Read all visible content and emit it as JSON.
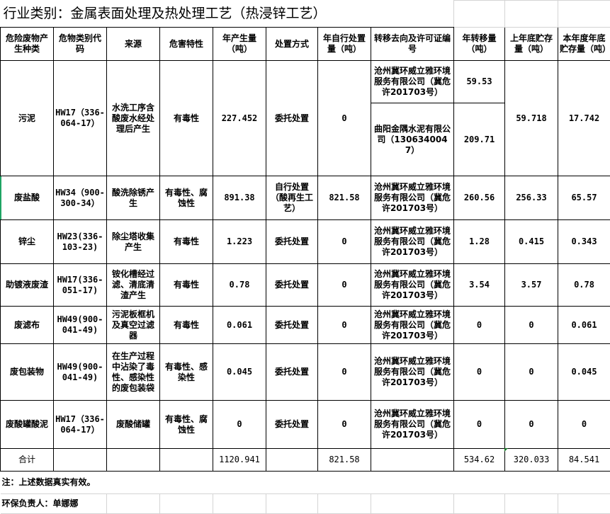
{
  "title": "行业类别：金属表面处理及热处理工艺（热浸锌工艺）",
  "headers": [
    "危险废物产生种类",
    "危物类别代码",
    "来源",
    "危害特性",
    "年产生量（吨）",
    "处置方式",
    "年自行处置量（吨）",
    "转移去向及许可证编号",
    "年转移量（吨）",
    "上年底贮存量（吨）",
    "本年度年底贮存量（吨）"
  ],
  "sludge": {
    "name": "污泥",
    "code": "HW17（336-064-17）",
    "source": "水洗工序含酸废水经处理后产生",
    "hazard": "有毒性",
    "generated": "227.452",
    "method": "委托处置",
    "self": "0",
    "dest1": "沧州冀环威立雅环境服务有限公司（冀危许201703号）",
    "transfer1": "59.53",
    "dest2": "曲阳金隅水泥有限公司（1306340047）",
    "transfer2": "209.71",
    "last": "59.718",
    "current": "17.742"
  },
  "rows": [
    {
      "name": "废盐酸",
      "code": "HW34（900-300-34）",
      "source": "酸洗除锈产生",
      "hazard": "有毒性、腐蚀性",
      "generated": "891.38",
      "method": "自行处置（酸再生工艺）",
      "self": "821.58",
      "dest": "沧州冀环威立雅环境服务有限公司（冀危许201703号）",
      "transfer": "260.56",
      "last": "256.33",
      "current": "65.57"
    },
    {
      "name": "锌尘",
      "code": "HW23(336-103-23)",
      "source": "除尘塔收集产生",
      "hazard": "有毒性",
      "generated": "1.223",
      "method": "委托处置",
      "self": "0",
      "dest": "沧州冀环威立雅环境服务有限公司（冀危许201703号）",
      "transfer": "1.28",
      "last": "0.415",
      "current": "0.343"
    },
    {
      "name": "助镀液废渣",
      "code": "HW17(336-051-17)",
      "source": "铵化槽经过滤、清底清渣产生",
      "hazard": "有毒性",
      "generated": "0.78",
      "method": "委托处置",
      "self": "0",
      "dest": "沧州冀环威立雅环境服务有限公司（冀危许201703号）",
      "transfer": "3.54",
      "last": "3.57",
      "current": "0.78"
    },
    {
      "name": "废滤布",
      "code": "HW49(900-041-49)",
      "source": "污泥板框机及真空过滤器",
      "hazard": "有毒性",
      "generated": "0.061",
      "method": "委托处置",
      "self": "0",
      "dest": "沧州冀环威立雅环境服务有限公司（冀危许201703号）",
      "transfer": "0",
      "last": "0",
      "current": "0.061"
    },
    {
      "name": "废包装物",
      "code": "HW49(900-041-49)",
      "source": "在生产过程中沾染了毒性、感染性的废包装袋",
      "hazard": "有毒性、感染性",
      "generated": "0.045",
      "method": "委托处置",
      "self": "0",
      "dest": "沧州冀环威立雅环境服务有限公司（冀危许201703号）",
      "transfer": "0",
      "last": "0",
      "current": "0.045"
    },
    {
      "name": "废酸罐酸泥",
      "code": "HW17（336-064-17）",
      "source": "废酸储罐",
      "hazard": "有毒性、腐蚀性",
      "generated": "0",
      "method": "委托处置",
      "self": "0",
      "dest": "沧州冀环威立雅环境服务有限公司（冀危许201703号）",
      "transfer": "0",
      "last": "0",
      "current": "0"
    }
  ],
  "total": {
    "label": "合计",
    "generated": "1120.941",
    "self": "821.58",
    "transfer": "534.62",
    "last": "320.033",
    "current": "84.541"
  },
  "note": "注：上述数据真实有效。",
  "responsible": "环保负责人：单娜娜"
}
